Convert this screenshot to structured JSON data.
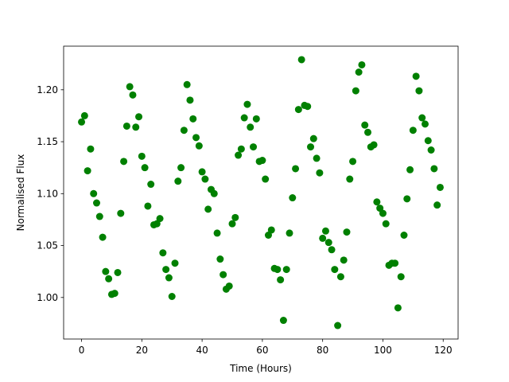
{
  "chart_data": {
    "type": "scatter",
    "xlabel": "Time (Hours)",
    "ylabel": "Normalised Flux",
    "color": "#008000",
    "x": [
      0,
      1,
      2,
      3,
      4,
      5,
      6,
      7,
      8,
      9,
      10,
      11,
      12,
      13,
      14,
      15,
      16,
      17,
      18,
      19,
      20,
      21,
      22,
      23,
      24,
      25,
      26,
      27,
      28,
      29,
      30,
      31,
      32,
      33,
      34,
      35,
      36,
      37,
      38,
      39,
      40,
      41,
      42,
      43,
      44,
      45,
      46,
      47,
      48,
      49,
      50,
      51,
      52,
      53,
      54,
      55,
      56,
      57,
      58,
      59,
      60,
      61,
      62,
      63,
      64,
      65,
      66,
      67,
      68,
      69,
      70,
      71,
      72,
      73,
      74,
      75,
      76,
      77,
      78,
      79,
      80,
      81,
      82,
      83,
      84,
      85,
      86,
      87,
      88,
      89,
      90,
      91,
      92,
      93,
      94,
      95,
      96,
      97,
      98,
      99,
      100,
      101,
      102,
      103,
      104,
      105,
      106,
      107,
      108,
      109,
      110,
      111,
      112,
      113,
      114,
      115,
      116,
      117,
      118,
      119
    ],
    "values": [
      1.169,
      1.175,
      1.122,
      1.143,
      1.1,
      1.091,
      1.078,
      1.058,
      1.025,
      1.018,
      1.003,
      1.004,
      1.024,
      1.081,
      1.131,
      1.165,
      1.203,
      1.195,
      1.164,
      1.174,
      1.136,
      1.125,
      1.088,
      1.109,
      1.07,
      1.071,
      1.076,
      1.043,
      1.027,
      1.019,
      1.001,
      1.033,
      1.112,
      1.125,
      1.161,
      1.205,
      1.19,
      1.172,
      1.154,
      1.146,
      1.121,
      1.114,
      1.085,
      1.104,
      1.1,
      1.062,
      1.037,
      1.022,
      1.008,
      1.011,
      1.071,
      1.077,
      1.137,
      1.143,
      1.173,
      1.186,
      1.164,
      1.145,
      1.172,
      1.131,
      1.132,
      1.114,
      1.06,
      1.065,
      1.028,
      1.027,
      1.017,
      0.978,
      1.027,
      1.062,
      1.096,
      1.124,
      1.181,
      1.229,
      1.185,
      1.184,
      1.145,
      1.153,
      1.134,
      1.12,
      1.057,
      1.064,
      1.053,
      1.046,
      1.027,
      0.973,
      1.02,
      1.036,
      1.063,
      1.114,
      1.131,
      1.199,
      1.217,
      1.224,
      1.166,
      1.159,
      1.145,
      1.147,
      1.092,
      1.086,
      1.081,
      1.071,
      1.031,
      1.033,
      1.033,
      0.99,
      1.02,
      1.06,
      1.095,
      1.123,
      1.161,
      1.213,
      1.199,
      1.173,
      1.167,
      1.151,
      1.142,
      1.124,
      1.089,
      1.106
    ],
    "xlim": [
      -5.95,
      124.95
    ],
    "ylim": [
      0.96,
      1.242
    ],
    "xticks": [
      0,
      20,
      40,
      60,
      80,
      100,
      120
    ],
    "yticks": [
      {
        "value": 1.0,
        "label": "1.00"
      },
      {
        "value": 1.05,
        "label": "1.05"
      },
      {
        "value": 1.1,
        "label": "1.10"
      },
      {
        "value": 1.15,
        "label": "1.15"
      },
      {
        "value": 1.2,
        "label": "1.20"
      }
    ]
  }
}
